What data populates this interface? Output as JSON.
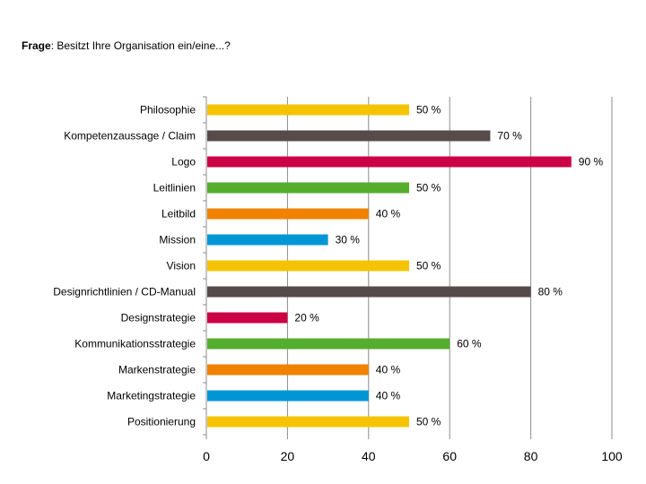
{
  "question": {
    "label": "Frage",
    "separator": ": ",
    "text": "Besitzt Ihre Organisation ein/eine...?"
  },
  "chart_data": {
    "type": "bar",
    "orientation": "horizontal",
    "categories": [
      "Philosophie",
      "Kompetenzaussage / Claim",
      "Logo",
      "Leitlinien",
      "Leitbild",
      "Mission",
      "Vision",
      "Designrichtlinien / CD-Manual",
      "Designstrategie",
      "Kommunikationsstrategie",
      "Markenstrategie",
      "Marketingstrategie",
      "Positionierung"
    ],
    "values": [
      50,
      70,
      90,
      50,
      40,
      30,
      50,
      80,
      20,
      60,
      40,
      40,
      50
    ],
    "value_labels": [
      "50 %",
      "70 %",
      "90 %",
      "50 %",
      "40 %",
      "30 %",
      "50 %",
      "80 %",
      "20 %",
      "60 %",
      "40 %",
      "40 %",
      "50 %"
    ],
    "colors": [
      "#f5c400",
      "#554b4a",
      "#cc0044",
      "#55ad2e",
      "#f08200",
      "#0096d6",
      "#f5c400",
      "#554b4a",
      "#cc0044",
      "#55ad2e",
      "#f08200",
      "#0096d6",
      "#f5c400"
    ],
    "xlim": [
      0,
      100
    ],
    "xticks": [
      0,
      20,
      40,
      60,
      80,
      100
    ],
    "xtick_labels": [
      "0",
      "20",
      "40",
      "60",
      "80",
      "100"
    ],
    "grid": true,
    "title": "",
    "xlabel": "",
    "ylabel": ""
  }
}
